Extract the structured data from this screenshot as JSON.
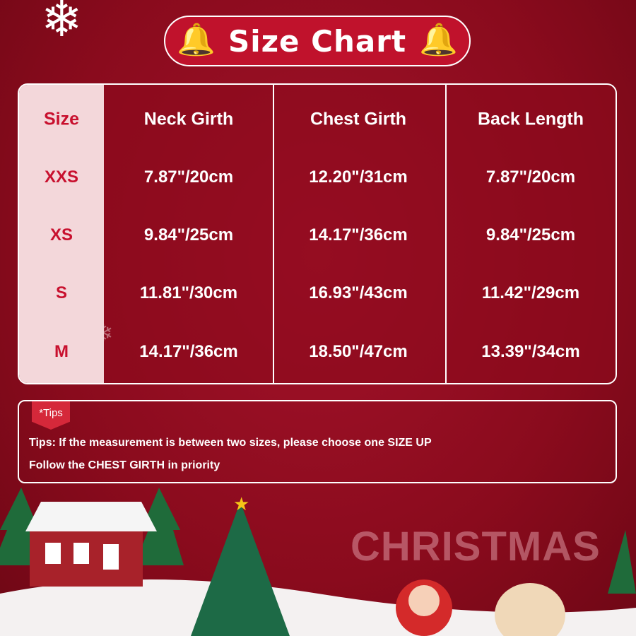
{
  "title": "Size Chart",
  "table": {
    "headers": [
      "Size",
      "Neck Girth",
      "Chest Girth",
      "Back Length"
    ],
    "rows": [
      [
        "XXS",
        "7.87\"/20cm",
        "12.20\"/31cm",
        "7.87\"/20cm"
      ],
      [
        "XS",
        "9.84\"/25cm",
        "14.17\"/36cm",
        "9.84\"/25cm"
      ],
      [
        "S",
        "11.81\"/30cm",
        "16.93\"/43cm",
        "11.42\"/29cm"
      ],
      [
        "M",
        "14.17\"/36cm",
        "18.50\"/47cm",
        "13.39\"/34cm"
      ]
    ]
  },
  "tips": {
    "tag": "*Tips",
    "line1": "Tips: If the measurement is between two sizes, please choose one  SIZE UP",
    "line2": "Follow the CHEST GIRTH in priority"
  },
  "scene_text": "CHRISTMAS",
  "colors": {
    "background": "#8e0c1e",
    "size_column": "#f3d7da",
    "size_text": "#c8102e",
    "title_pill": "#c0122c"
  }
}
